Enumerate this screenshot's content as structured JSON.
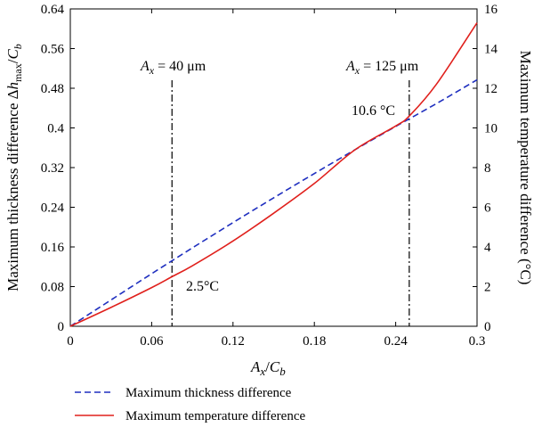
{
  "chart_data": {
    "type": "line",
    "xlabel": "Ax/Cb",
    "ylabel_left": "Maximum thickness difference Δhmax/Cb",
    "ylabel_right": "Maximum temperature difference (°C)",
    "xlim": [
      0,
      0.3
    ],
    "ylim_left": [
      0,
      0.64
    ],
    "ylim_right": [
      0,
      16
    ],
    "x_ticks": [
      "0",
      "0.06",
      "0.12",
      "0.18",
      "0.24",
      "0.3"
    ],
    "y_left_ticks": [
      "0",
      "0.08",
      "0.16",
      "0.24",
      "0.32",
      "0.4",
      "0.48",
      "0.56",
      "0.64"
    ],
    "y_right_ticks": [
      "0",
      "2",
      "4",
      "6",
      "8",
      "10",
      "12",
      "14",
      "16"
    ],
    "grid": false,
    "legend_position": "bottom-left",
    "series": [
      {
        "name": "Maximum thickness difference",
        "axis": "left",
        "style": "dashed",
        "color": "#1f2fbf",
        "x": [
          0,
          0.03,
          0.06,
          0.09,
          0.12,
          0.15,
          0.18,
          0.21,
          0.24,
          0.27,
          0.3
        ],
        "y": [
          0,
          0.053,
          0.106,
          0.158,
          0.209,
          0.259,
          0.308,
          0.356,
          0.403,
          0.449,
          0.497
        ]
      },
      {
        "name": "Maximum temperature difference",
        "axis": "right",
        "style": "solid",
        "color": "#e0201c",
        "x": [
          0,
          0.03,
          0.06,
          0.075,
          0.09,
          0.12,
          0.15,
          0.18,
          0.21,
          0.24,
          0.25,
          0.27,
          0.3
        ],
        "y": [
          0,
          0.95,
          1.95,
          2.5,
          3.05,
          4.3,
          5.7,
          7.2,
          8.9,
          10.1,
          10.6,
          12.2,
          15.3
        ]
      }
    ],
    "vlines": [
      {
        "x": 0.075,
        "label_var": "A",
        "label_sub": "x",
        "label_value": " = 40 μm"
      },
      {
        "x": 0.25,
        "label_var": "A",
        "label_sub": "x",
        "label_value": " = 125 μm"
      }
    ],
    "annotations": [
      "2.5°C",
      "10.6 °C"
    ],
    "axis_titles": {
      "x_var": "A",
      "x_sub": "x",
      "x_den": "C",
      "x_den_sub": "b",
      "left_main": "Maximum thickness difference Δ",
      "left_var": "h",
      "left_sub": "max",
      "left_den": "C",
      "left_den_sub": "b",
      "right": "Maximum temperature difference (°C)"
    }
  }
}
